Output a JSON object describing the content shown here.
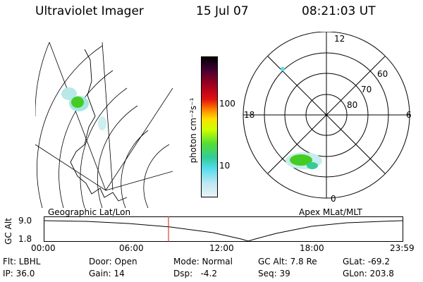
{
  "header": {
    "title": "Ultraviolet Imager",
    "date": "15 Jul 07",
    "time": "08:21:03 UT"
  },
  "colorbar": {
    "label": "photon cm⁻²s⁻¹",
    "ticks": [
      "100",
      "10"
    ]
  },
  "polar_plot": {
    "labels": {
      "top": "12",
      "left": "18",
      "right": "6",
      "bottom": "0"
    },
    "lat_labels": [
      "60",
      "70",
      "80"
    ]
  },
  "panels": {
    "geo_label": "Geographic Lat/Lon",
    "apex_label": "Apex  MLat/MLT"
  },
  "timeline": {
    "axis_label": "GC Alt",
    "y_ticks": [
      "9.0",
      "1.8"
    ],
    "x_ticks": [
      "00:00",
      "06:00",
      "12:00",
      "18:00",
      "23:59"
    ],
    "marker_time": "08:21"
  },
  "status": {
    "flt": "Flt: LBHL",
    "ip": "IP: 36.0",
    "door": "Door: Open",
    "gain": "Gain: 14",
    "mode": "Mode: Normal",
    "dsp": "Dsp:   -4.2",
    "gc_alt": "GC Alt: 7.8 Re",
    "seq": "Seq: 39",
    "glat": "GLat: -69.2",
    "glon": "GLon: 203.8"
  },
  "colors": {
    "aurora_bright": "#44cc22",
    "aurora_mid": "#b8e8e8",
    "marker": "#cc2200"
  }
}
